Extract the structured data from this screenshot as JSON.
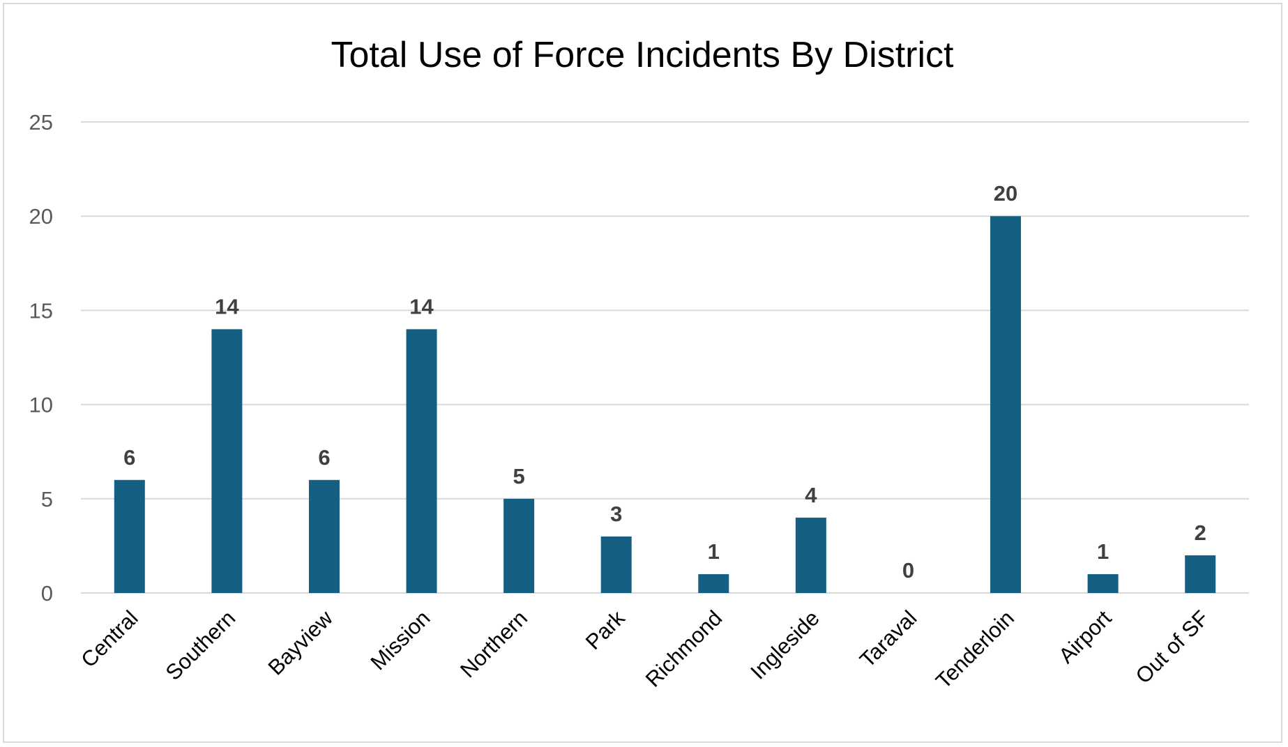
{
  "chart_data": {
    "type": "bar",
    "title": "Total Use of Force Incidents By District",
    "xlabel": "",
    "ylabel": "",
    "categories": [
      "Central",
      "Southern",
      "Bayview",
      "Mission",
      "Northern",
      "Park",
      "Richmond",
      "Ingleside",
      "Taraval",
      "Tenderloin",
      "Airport",
      "Out of SF"
    ],
    "values": [
      6,
      14,
      6,
      14,
      5,
      3,
      1,
      4,
      0,
      20,
      1,
      2
    ],
    "ylim": [
      0,
      25
    ],
    "yticks": [
      0,
      5,
      10,
      15,
      20,
      25
    ],
    "grid": true,
    "data_labels": true,
    "legend": "none",
    "bar_color": "#156082",
    "grid_color": "#d9d9d9"
  }
}
